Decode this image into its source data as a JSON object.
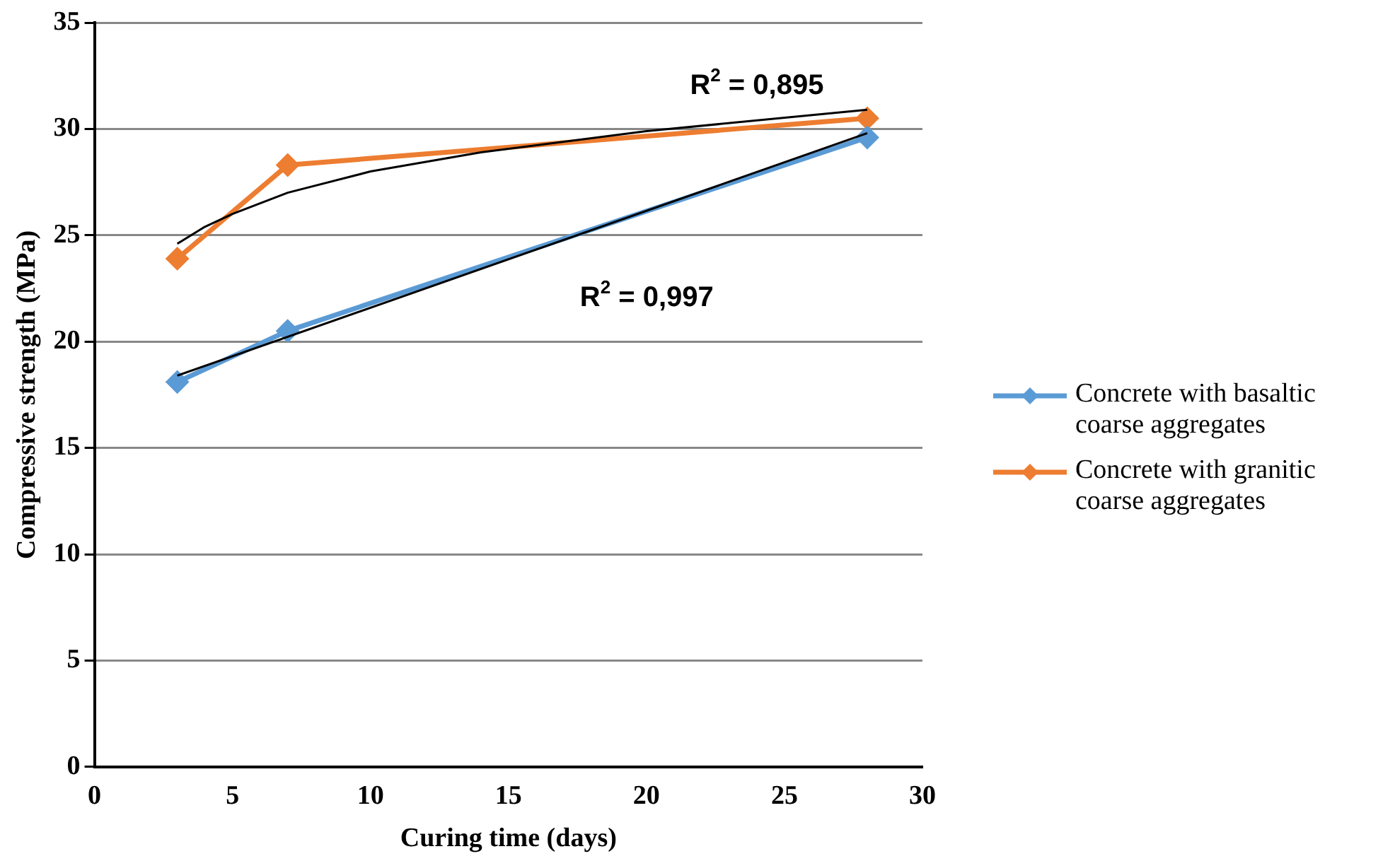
{
  "chart_data": {
    "type": "line",
    "xlabel": "Curing time (days)",
    "ylabel": "Compressive strength (MPa)",
    "x": [
      3,
      7,
      28
    ],
    "series": [
      {
        "name": "Concrete with basaltic coarse aggregates",
        "color": "#5b9bd5",
        "values": [
          18.1,
          20.5,
          29.6
        ],
        "marker": "diamond"
      },
      {
        "name": "Concrete with granitic coarse aggregates",
        "color": "#ed7d31",
        "values": [
          23.9,
          28.3,
          30.5
        ],
        "marker": "diamond"
      },
      {
        "type": "line",
        "color": "#000000",
        "x": [
          3,
          28
        ],
        "values": [
          18.4,
          29.8
        ],
        "marker": "none"
      },
      {
        "type": "line",
        "color": "#000000",
        "x": [
          3,
          4,
          5,
          7,
          10,
          14,
          20,
          28
        ],
        "values": [
          24.6,
          25.4,
          26.0,
          27.0,
          28.0,
          28.9,
          29.9,
          30.9
        ],
        "marker": "none"
      }
    ],
    "xlim": [
      0,
      30
    ],
    "xticks": [
      0,
      5,
      10,
      15,
      20,
      25,
      30
    ],
    "ylim": [
      0,
      35
    ],
    "yticks": [
      0,
      5,
      10,
      15,
      20,
      25,
      30,
      35
    ],
    "grid": "y",
    "legend": "right",
    "annotations": [
      "R$^{2}$ = 0,895",
      "R$^{2}$ = 0,997"
    ]
  }
}
